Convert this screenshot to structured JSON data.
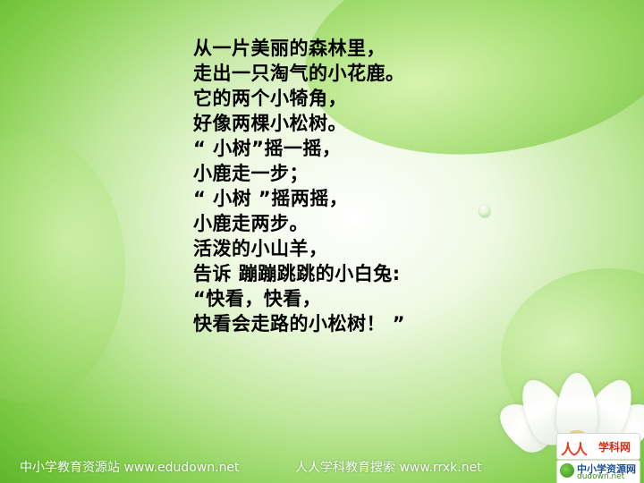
{
  "poem": {
    "lines": [
      "从一片美丽的森林里，",
      "走出一只淘气的小花鹿。",
      "它的两个小犄角，",
      "好像两棵小松树。",
      "“ 小树”摇一摇，",
      "小鹿走一步；",
      "“ 小树 ”摇两摇，",
      "小鹿走两步。",
      "活泼的小山羊，",
      "告诉 蹦蹦跳跳的小白兔:",
      "“快看，快看，",
      "快看会走路的小松树！ ”"
    ]
  },
  "footer": {
    "left": "中小学教育资源站 www.edudown.net",
    "right": "人人学科教育搜索 www.rrxk.net"
  },
  "logos": {
    "rrxk": {
      "mark": "人人",
      "text": "学科网"
    },
    "edudown": {
      "title": "中小学资源网",
      "url": "dudown.net"
    }
  },
  "colors": {
    "text": "#000000",
    "footer_text": "#ffffff",
    "background_green": "#86cf4e"
  }
}
